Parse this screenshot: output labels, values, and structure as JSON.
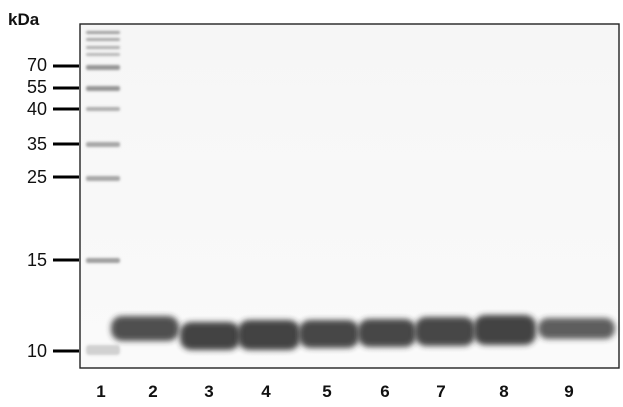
{
  "figure": {
    "unit_label": "kDa",
    "markers": [
      "70",
      "55",
      "40",
      "35",
      "25",
      "15",
      "10"
    ],
    "lanes": [
      "1",
      "2",
      "3",
      "4",
      "5",
      "6",
      "7",
      "8",
      "9"
    ]
  }
}
